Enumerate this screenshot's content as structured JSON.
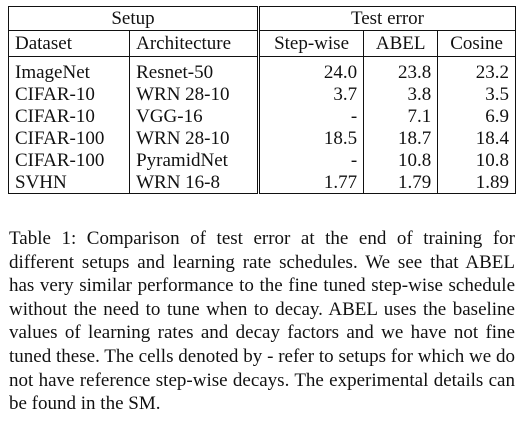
{
  "table": {
    "group_headers": [
      "Setup",
      "Test error"
    ],
    "column_headers": [
      "Dataset",
      "Architecture",
      "Step-wise",
      "ABEL",
      "Cosine"
    ],
    "rows": [
      [
        "ImageNet",
        "Resnet-50",
        "24.0",
        "23.8",
        "23.2"
      ],
      [
        "CIFAR-10",
        "WRN 28-10",
        "3.7",
        "3.8",
        "3.5"
      ],
      [
        "CIFAR-10",
        "VGG-16",
        "-",
        "7.1",
        "6.9"
      ],
      [
        "CIFAR-100",
        "WRN 28-10",
        "18.5",
        "18.7",
        "18.4"
      ],
      [
        "CIFAR-100",
        "PyramidNet",
        "-",
        "10.8",
        "10.8"
      ],
      [
        "SVHN",
        "WRN 16-8",
        "1.77",
        "1.79",
        "1.89"
      ]
    ]
  },
  "caption": {
    "label": "Table 1:",
    "text": "Comparison of test error at the end of training for different setups and learning rate schedules. We see that ABEL has very similar performance to the fine tuned step-wise schedule without the need to tune when to decay. ABEL uses the baseline values of learning rates and decay factors and we have not fine tuned these. The cells denoted by - refer to setups for which we do not have reference step-wise decays. The experimental details can be found in the SM."
  }
}
